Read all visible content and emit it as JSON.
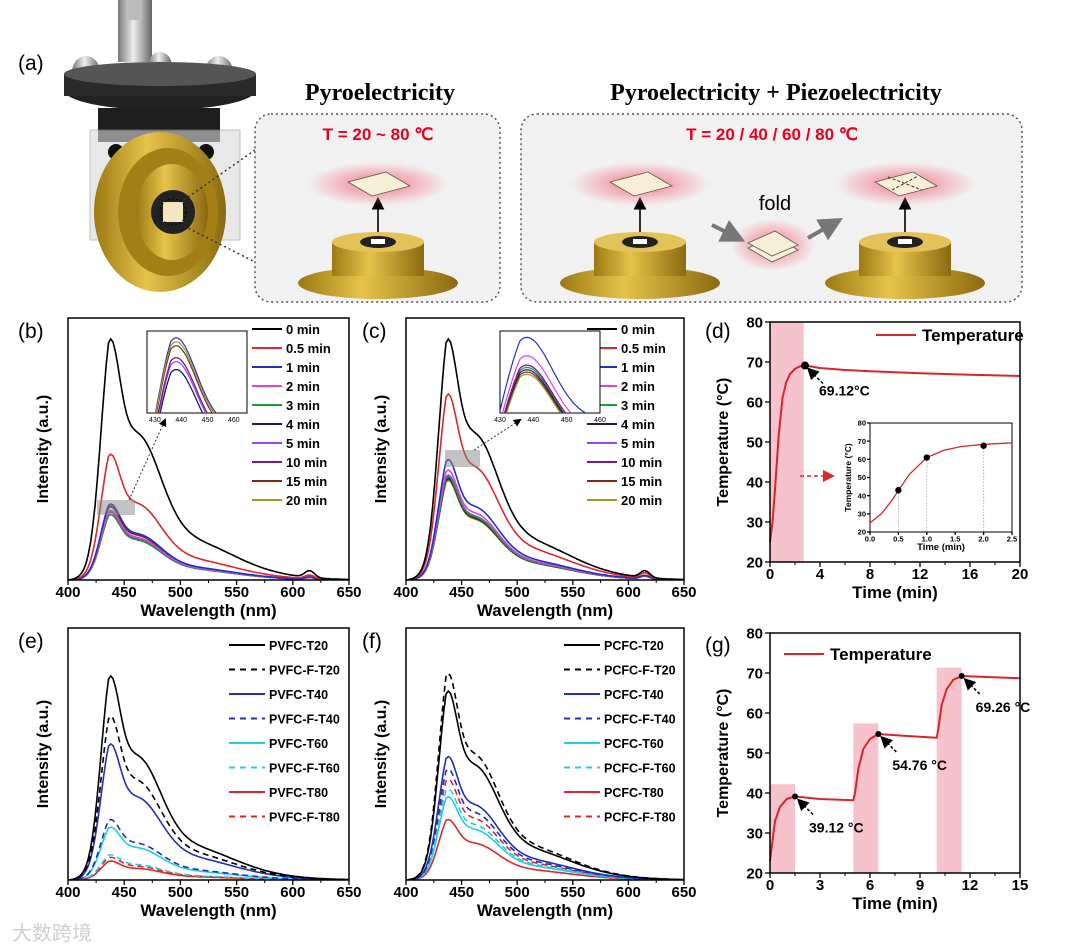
{
  "panel_labels": {
    "a": "(a)",
    "b": "(b)",
    "c": "(c)",
    "d": "(d)",
    "e": "(e)",
    "f": "(f)",
    "g": "(g)"
  },
  "panel_a": {
    "title_left": "Pyroelectricity",
    "temp_left": "T = 20 ~ 80 ℃",
    "title_right": "Pyroelectricity + Piezoelectricity",
    "temp_right": "T = 20 / 40 / 60 / 80 ℃",
    "fold_label": "fold"
  },
  "watermark": "大数跨境",
  "colors": {
    "glow": "#f26a7a",
    "gold": "#c9a227",
    "shade": "#f4b8c4",
    "temp_line": "#d7262b"
  },
  "chart_data": [
    {
      "id": "b",
      "type": "line",
      "xlabel": "Wavelength (nm)",
      "ylabel": "Intensity (a.u.)",
      "xlim": [
        400,
        650
      ],
      "xticks": [
        400,
        450,
        500,
        550,
        600,
        650
      ],
      "ylim": [
        0,
        1
      ],
      "series": [
        {
          "name": "0 min",
          "color": "#000000",
          "peak": 0.92,
          "dash": false
        },
        {
          "name": "0.5 min",
          "color": "#e0262b",
          "peak": 0.48,
          "dash": false
        },
        {
          "name": "1 min",
          "color": "#2230c8",
          "peak": 0.29,
          "dash": false
        },
        {
          "name": "2 min",
          "color": "#e040e0",
          "peak": 0.265,
          "dash": false
        },
        {
          "name": "3 min",
          "color": "#1f9a3a",
          "peak": 0.25,
          "dash": false
        },
        {
          "name": "4 min",
          "color": "#1a1a6e",
          "peak": 0.25,
          "dash": false
        },
        {
          "name": "5 min",
          "color": "#9a44f0",
          "peak": 0.26,
          "dash": false
        },
        {
          "name": "10 min",
          "color": "#7a1a8a",
          "peak": 0.265,
          "dash": false
        },
        {
          "name": "15 min",
          "color": "#7a2a1a",
          "peak": 0.28,
          "dash": false
        },
        {
          "name": "20 min",
          "color": "#9a9a20",
          "peak": 0.285,
          "dash": false
        }
      ],
      "inset": {
        "xlim": [
          427,
          465
        ],
        "xticks": [
          430,
          440,
          450,
          460
        ]
      }
    },
    {
      "id": "c",
      "type": "line",
      "xlabel": "Wavelength (nm)",
      "ylabel": "Intensity (a.u.)",
      "xlim": [
        400,
        650
      ],
      "xticks": [
        400,
        450,
        500,
        550,
        600,
        650
      ],
      "ylim": [
        0,
        1
      ],
      "series": [
        {
          "name": "0 min",
          "color": "#000000",
          "peak": 0.92,
          "dash": false
        },
        {
          "name": "0.5 min",
          "color": "#e0262b",
          "peak": 0.71,
          "dash": false
        },
        {
          "name": "1 min",
          "color": "#2230c8",
          "peak": 0.46,
          "dash": false
        },
        {
          "name": "2 min",
          "color": "#e040e0",
          "peak": 0.42,
          "dash": false
        },
        {
          "name": "3 min",
          "color": "#1f9a3a",
          "peak": 0.395,
          "dash": false
        },
        {
          "name": "4 min",
          "color": "#1a1a6e",
          "peak": 0.39,
          "dash": false
        },
        {
          "name": "5 min",
          "color": "#9a44f0",
          "peak": 0.4,
          "dash": false
        },
        {
          "name": "10 min",
          "color": "#7a1a8a",
          "peak": 0.4,
          "dash": false
        },
        {
          "name": "15 min",
          "color": "#7a2a1a",
          "peak": 0.385,
          "dash": false
        },
        {
          "name": "20 min",
          "color": "#9a9a20",
          "peak": 0.38,
          "dash": false
        }
      ],
      "inset": {
        "xlim": [
          430,
          460
        ],
        "xticks": [
          430,
          440,
          450,
          460
        ]
      }
    },
    {
      "id": "d",
      "type": "line",
      "xlabel": "Time (min)",
      "ylabel": "Temperature (°C)",
      "xlim": [
        0,
        20
      ],
      "xticks": [
        0,
        4,
        8,
        12,
        16,
        20
      ],
      "ylim": [
        20,
        80
      ],
      "yticks": [
        20,
        30,
        40,
        50,
        60,
        70,
        80
      ],
      "legend": "Temperature",
      "shaded": [
        [
          0,
          2.7
        ]
      ],
      "series": [
        {
          "name": "Temperature",
          "color": "#d7262b",
          "x": [
            0,
            0.2,
            0.4,
            0.5,
            0.7,
            1.0,
            1.3,
            1.6,
            2.0,
            2.4,
            2.8,
            4,
            6,
            8,
            12,
            16,
            20
          ],
          "y": [
            25,
            30,
            38,
            43,
            52,
            61,
            65,
            67,
            68.3,
            68.9,
            69.12,
            68.5,
            68.0,
            67.7,
            67.2,
            66.8,
            66.5
          ]
        }
      ],
      "annotations": [
        {
          "x": 2.8,
          "y": 69.12,
          "text": "69.12°C"
        }
      ],
      "inset": {
        "xlabel": "Time (min)",
        "ylabel": "Temperature (°C)",
        "xlim": [
          0,
          2.5
        ],
        "xticks": [
          "0.0",
          "0.5",
          "1.0",
          "1.5",
          "2.0",
          "2.5"
        ],
        "ylim": [
          20,
          80
        ],
        "yticks": [
          20,
          30,
          40,
          50,
          60,
          70,
          80
        ],
        "points": [
          [
            0.5,
            43
          ],
          [
            1.0,
            61
          ],
          [
            2.0,
            67.5
          ]
        ]
      }
    },
    {
      "id": "e",
      "type": "line",
      "xlabel": "Wavelength (nm)",
      "ylabel": "Intensity (a.u.)",
      "xlim": [
        400,
        650
      ],
      "xticks": [
        400,
        450,
        500,
        550,
        600,
        650
      ],
      "ylim": [
        0,
        1
      ],
      "series": [
        {
          "name": "PVFC-T20",
          "color": "#000000",
          "peak": 0.81,
          "dash": false
        },
        {
          "name": "PVFC-F-T20",
          "color": "#000000",
          "peak": 0.65,
          "dash": true
        },
        {
          "name": "PVFC-T40",
          "color": "#2230b8",
          "peak": 0.54,
          "dash": false
        },
        {
          "name": "PVFC-F-T40",
          "color": "#2230b8",
          "peak": 0.24,
          "dash": true
        },
        {
          "name": "PVFC-T60",
          "color": "#20d0e0",
          "peak": 0.21,
          "dash": false
        },
        {
          "name": "PVFC-F-T60",
          "color": "#20d0e0",
          "peak": 0.1,
          "dash": true
        },
        {
          "name": "PVFC-T80",
          "color": "#e0262b",
          "peak": 0.075,
          "dash": false
        },
        {
          "name": "PVFC-F-T80",
          "color": "#e0262b",
          "peak": 0.09,
          "dash": true
        }
      ]
    },
    {
      "id": "f",
      "type": "line",
      "xlabel": "Wavelength (nm)",
      "ylabel": "Intensity (a.u.)",
      "xlim": [
        400,
        650
      ],
      "xticks": [
        400,
        450,
        500,
        550,
        600,
        650
      ],
      "ylim": [
        0,
        1
      ],
      "series": [
        {
          "name": "PCFC-T20",
          "color": "#000000",
          "peak": 0.75,
          "dash": false
        },
        {
          "name": "PCFC-F-T20",
          "color": "#000000",
          "peak": 0.82,
          "dash": true
        },
        {
          "name": "PCFC-T40",
          "color": "#2230b8",
          "peak": 0.49,
          "dash": false
        },
        {
          "name": "PCFC-F-T40",
          "color": "#2230b8",
          "peak": 0.44,
          "dash": true
        },
        {
          "name": "PCFC-T60",
          "color": "#20d0e0",
          "peak": 0.33,
          "dash": false
        },
        {
          "name": "PCFC-F-T60",
          "color": "#20d0e0",
          "peak": 0.36,
          "dash": true
        },
        {
          "name": "PCFC-T80",
          "color": "#e0262b",
          "peak": 0.24,
          "dash": false
        },
        {
          "name": "PCFC-F-T80",
          "color": "#e0262b",
          "peak": 0.4,
          "dash": true
        }
      ]
    },
    {
      "id": "g",
      "type": "line",
      "xlabel": "Time (min)",
      "ylabel": "Temperature (°C)",
      "xlim": [
        0,
        15
      ],
      "xticks": [
        0,
        3,
        6,
        9,
        12,
        15
      ],
      "ylim": [
        20,
        80
      ],
      "yticks": [
        20,
        30,
        40,
        50,
        60,
        70,
        80
      ],
      "legend": "Temperature",
      "shaded": [
        [
          0,
          1.5,
          42.2
        ],
        [
          5,
          6.5,
          57.4
        ],
        [
          10,
          11.5,
          71.3
        ]
      ],
      "series": [
        {
          "name": "Temperature",
          "color": "#d7262b",
          "x": [
            0,
            0.15,
            0.3,
            0.6,
            1.0,
            1.5,
            3,
            5,
            5.1,
            5.3,
            5.6,
            6.0,
            6.5,
            8,
            10,
            10.1,
            10.3,
            10.6,
            11.0,
            11.5,
            13,
            15
          ],
          "y": [
            23,
            28,
            33,
            36.5,
            38.5,
            39.12,
            38.5,
            38.2,
            40,
            46,
            51,
            53.5,
            54.76,
            54.3,
            53.8,
            56,
            62,
            66,
            68.3,
            69.26,
            69.0,
            68.7
          ]
        }
      ],
      "annotations": [
        {
          "x": 1.5,
          "y": 39.12,
          "text": "39.12 °C"
        },
        {
          "x": 6.5,
          "y": 54.76,
          "text": "54.76 °C"
        },
        {
          "x": 11.5,
          "y": 69.26,
          "text": "69.26 °C"
        }
      ]
    }
  ]
}
